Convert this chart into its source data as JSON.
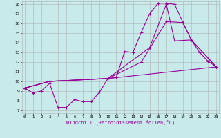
{
  "title": "",
  "xlabel": "Windchill (Refroidissement éolien,°C)",
  "ylabel": "",
  "bg_color": "#c8eaea",
  "grid_color": "#b0b0b0",
  "line_color": "#990099",
  "xmin": 0,
  "xmax": 23,
  "ymin": 7,
  "ymax": 18,
  "lines": [
    {
      "x": [
        0,
        1,
        2,
        3,
        4,
        5,
        6,
        7,
        8,
        9,
        10,
        11,
        12,
        13,
        14,
        15,
        16,
        17,
        18,
        19,
        20,
        21,
        22,
        23
      ],
      "y": [
        9.3,
        8.8,
        9.0,
        9.8,
        7.3,
        7.3,
        8.1,
        7.9,
        7.9,
        8.9,
        10.3,
        10.4,
        13.1,
        13.0,
        15.1,
        17.0,
        18.1,
        18.1,
        18.0,
        16.1,
        14.3,
        13.0,
        12.1,
        11.5
      ]
    },
    {
      "x": [
        0,
        3,
        10,
        15,
        17,
        18,
        20,
        23
      ],
      "y": [
        9.3,
        10.0,
        10.3,
        13.5,
        18.0,
        14.2,
        14.3,
        11.5
      ]
    },
    {
      "x": [
        0,
        3,
        10,
        14,
        17,
        19,
        20,
        23
      ],
      "y": [
        9.3,
        10.0,
        10.3,
        12.0,
        16.2,
        16.1,
        14.3,
        11.5
      ]
    },
    {
      "x": [
        0,
        3,
        10,
        23
      ],
      "y": [
        9.3,
        10.0,
        10.3,
        11.5
      ]
    }
  ]
}
